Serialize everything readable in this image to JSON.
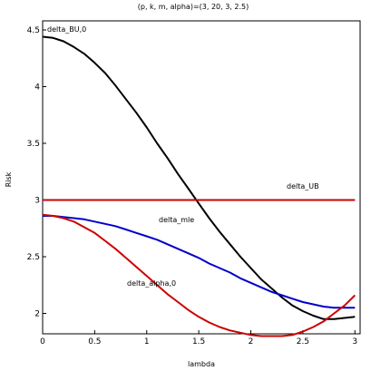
{
  "chart_data": {
    "type": "line",
    "title": "(p, k, m, alpha)=(3, 20, 3, 2.5)",
    "xlabel": "lambda",
    "ylabel": "Risk",
    "xlim": [
      0,
      3.05
    ],
    "ylim": [
      1.82,
      4.58
    ],
    "x_ticks": [
      0,
      0.5,
      1,
      1.5,
      2,
      2.5,
      3
    ],
    "x_tick_labels": [
      "0",
      "0.5",
      "1",
      "1.5",
      "2",
      "2.5",
      "3"
    ],
    "y_ticks": [
      2,
      2.5,
      3,
      3.5,
      4,
      4.5
    ],
    "y_tick_labels": [
      "2",
      "2.5",
      "3",
      "3.5",
      "4",
      "4.5"
    ],
    "grid": false,
    "legend": "none",
    "series": [
      {
        "name": "delta_BU,0",
        "color": "#000000",
        "x": [
          0,
          0.1,
          0.2,
          0.3,
          0.4,
          0.5,
          0.6,
          0.7,
          0.8,
          0.9,
          1.0,
          1.1,
          1.2,
          1.3,
          1.4,
          1.5,
          1.6,
          1.7,
          1.8,
          1.9,
          2.0,
          2.1,
          2.2,
          2.3,
          2.4,
          2.5,
          2.6,
          2.7,
          2.8,
          2.9,
          3.0
        ],
        "y": [
          4.44,
          4.43,
          4.4,
          4.35,
          4.29,
          4.21,
          4.12,
          4.01,
          3.89,
          3.77,
          3.64,
          3.5,
          3.37,
          3.23,
          3.1,
          2.97,
          2.84,
          2.72,
          2.61,
          2.5,
          2.4,
          2.3,
          2.22,
          2.14,
          2.07,
          2.02,
          1.98,
          1.95,
          1.95,
          1.96,
          1.97
        ]
      },
      {
        "name": "delta_UB",
        "color": "#cc0000",
        "x": [
          0,
          3.0
        ],
        "y": [
          3.0,
          3.0
        ]
      },
      {
        "name": "delta_mle",
        "color": "#0000cc",
        "x": [
          0,
          0.1,
          0.2,
          0.3,
          0.4,
          0.5,
          0.6,
          0.7,
          0.8,
          0.9,
          1.0,
          1.1,
          1.2,
          1.3,
          1.4,
          1.5,
          1.6,
          1.7,
          1.8,
          1.9,
          2.0,
          2.1,
          2.2,
          2.3,
          2.4,
          2.5,
          2.6,
          2.7,
          2.8,
          2.9,
          3.0
        ],
        "y": [
          2.86,
          2.86,
          2.85,
          2.84,
          2.83,
          2.81,
          2.79,
          2.77,
          2.74,
          2.71,
          2.68,
          2.65,
          2.61,
          2.57,
          2.53,
          2.49,
          2.44,
          2.4,
          2.36,
          2.31,
          2.27,
          2.23,
          2.19,
          2.16,
          2.13,
          2.1,
          2.08,
          2.06,
          2.05,
          2.05,
          2.05
        ]
      },
      {
        "name": "delta_alpha,0",
        "color": "#cc0000",
        "x": [
          0,
          0.1,
          0.2,
          0.3,
          0.4,
          0.5,
          0.6,
          0.7,
          0.8,
          0.9,
          1.0,
          1.1,
          1.2,
          1.3,
          1.4,
          1.5,
          1.6,
          1.7,
          1.8,
          1.9,
          2.0,
          2.1,
          2.2,
          2.3,
          2.4,
          2.5,
          2.6,
          2.7,
          2.8,
          2.9,
          3.0
        ],
        "y": [
          2.87,
          2.86,
          2.84,
          2.81,
          2.76,
          2.71,
          2.64,
          2.57,
          2.49,
          2.41,
          2.33,
          2.25,
          2.17,
          2.1,
          2.03,
          1.97,
          1.92,
          1.88,
          1.85,
          1.83,
          1.81,
          1.8,
          1.8,
          1.8,
          1.81,
          1.84,
          1.88,
          1.93,
          2.0,
          2.07,
          2.16
        ]
      }
    ],
    "annotations": [
      {
        "text": "delta_BU,0",
        "series": "delta_BU,0"
      },
      {
        "text": "delta_UB",
        "series": "delta_UB"
      },
      {
        "text": "delta_mle",
        "series": "delta_mle"
      },
      {
        "text": "delta_alpha,0",
        "series": "delta_alpha,0"
      }
    ]
  }
}
